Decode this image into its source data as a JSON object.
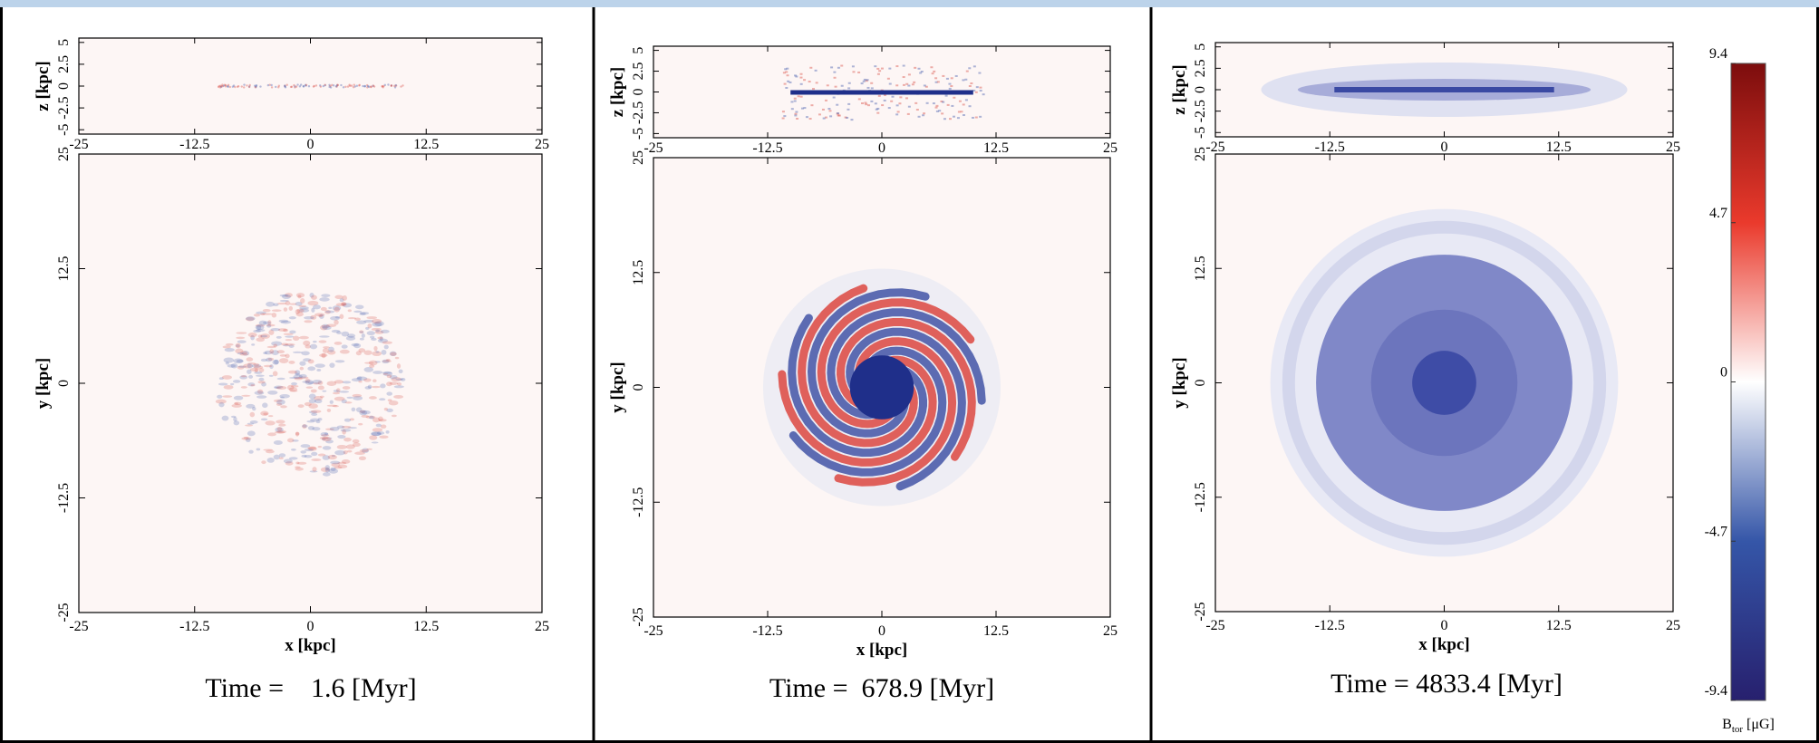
{
  "chart_data": [
    {
      "type": "image",
      "annotation": "Time =    1.6 [Myr]",
      "xlabel": "x [kpc]",
      "ylabel": "y [kpc]",
      "zlabel": "z [kpc]",
      "xlim": [
        -25,
        25
      ],
      "ylim": [
        -25,
        25
      ],
      "zlim": [
        -5.5,
        5.5
      ],
      "xticks": [
        -25,
        -12.5,
        0,
        12.5,
        25
      ],
      "yticks": [
        -25,
        -12.5,
        0,
        12.5,
        25
      ],
      "zticks": [
        -5,
        -2.5,
        0,
        2.5,
        5
      ]
    },
    {
      "type": "image",
      "annotation": "Time =  678.9 [Myr]",
      "xlabel": "x [kpc]",
      "ylabel": "y [kpc]",
      "zlabel": "z [kpc]",
      "xlim": [
        -25,
        25
      ],
      "ylim": [
        -25,
        25
      ],
      "zlim": [
        -5.5,
        5.5
      ],
      "xticks": [
        -25,
        -12.5,
        0,
        12.5,
        25
      ],
      "yticks": [
        -25,
        -12.5,
        0,
        12.5,
        25
      ],
      "zticks": [
        -5,
        -2.5,
        0,
        2.5,
        5
      ]
    },
    {
      "type": "image",
      "annotation": "Time = 4833.4 [Myr]",
      "xlabel": "x [kpc]",
      "ylabel": "y [kpc]",
      "zlabel": "z [kpc]",
      "xlim": [
        -25,
        25
      ],
      "ylim": [
        -25,
        25
      ],
      "zlim": [
        -5.5,
        5.5
      ],
      "xticks": [
        -25,
        -12.5,
        0,
        12.5,
        25
      ],
      "yticks": [
        -25,
        -12.5,
        0,
        12.5,
        25
      ],
      "zticks": [
        -5,
        -2.5,
        0,
        2.5,
        5
      ]
    },
    {
      "type": "colorbar",
      "label": "B",
      "label_sub": "tor",
      "label_unit": "[μG]",
      "ylim": [
        -9.4,
        9.4
      ],
      "yticks": [
        -9.4,
        -4.7,
        0,
        4.7,
        9.4
      ],
      "colors": [
        "#27206e",
        "#3556a8",
        "#ffffff",
        "#ea3a2c",
        "#7c0d0d"
      ]
    }
  ]
}
